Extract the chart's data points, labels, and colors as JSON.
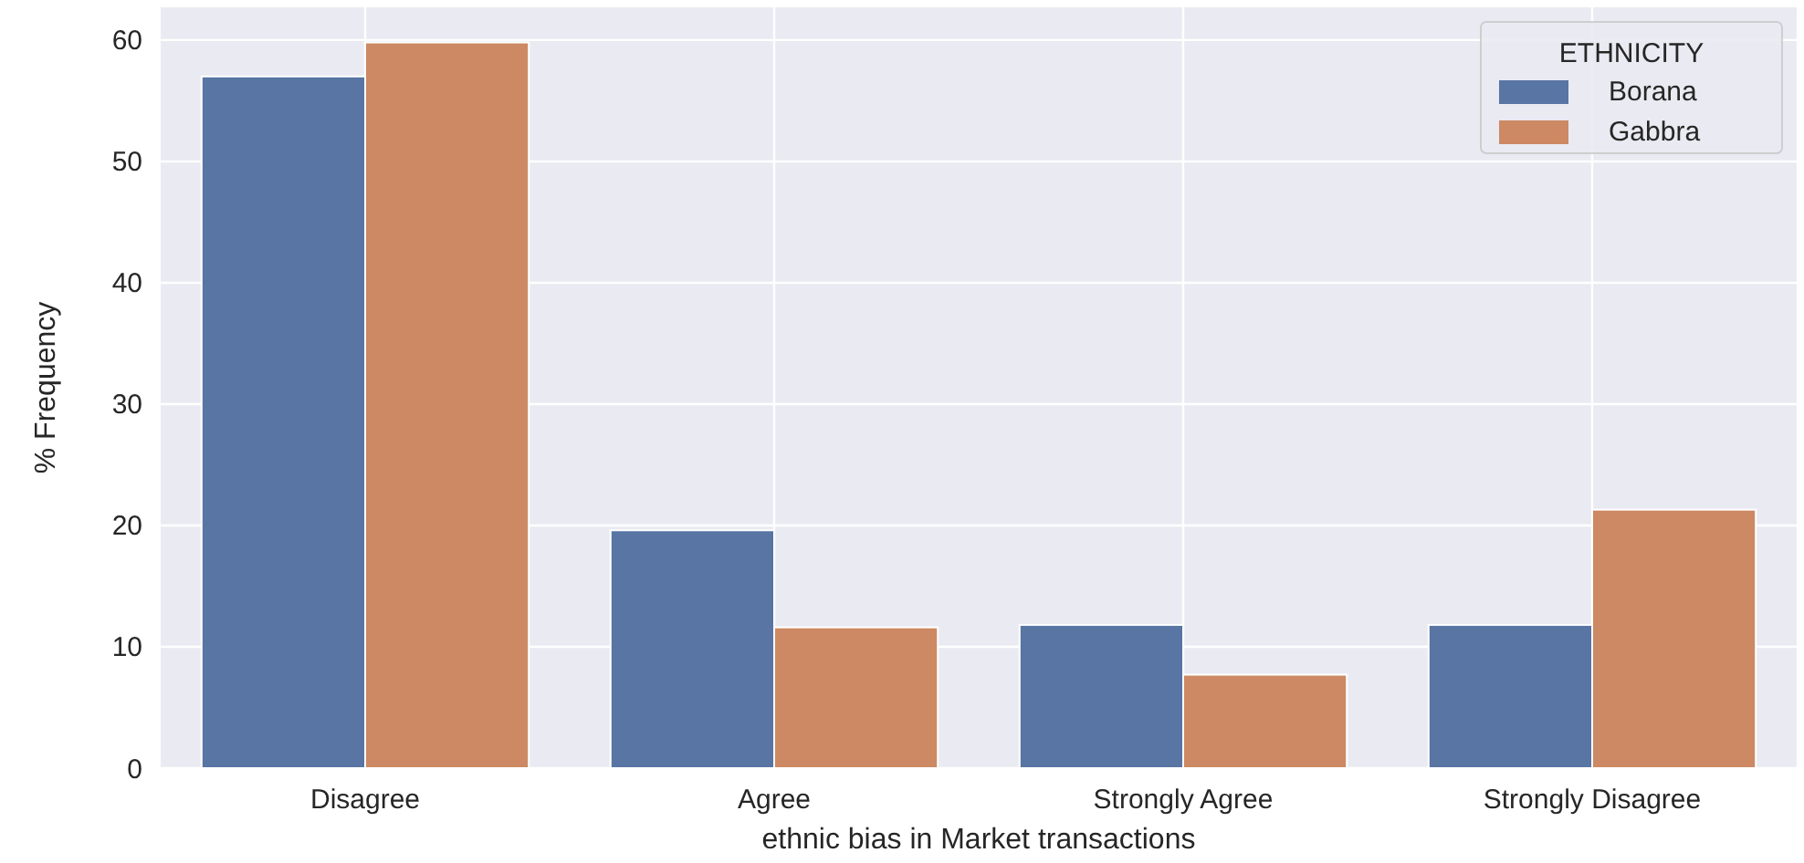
{
  "chart_data": {
    "type": "bar",
    "xlabel": "ethnic bias in Market transactions",
    "ylabel": "% Frequency",
    "legend_title": "ETHNICITY",
    "legend": "top right",
    "grid": true,
    "categories": [
      "Disagree",
      "Agree",
      "Strongly Agree",
      "Strongly Disagree"
    ],
    "series": [
      {
        "name": "Borana",
        "color": "#5875a4",
        "values": [
          57,
          19.6,
          11.8,
          11.8
        ]
      },
      {
        "name": "Gabbra",
        "color": "#cc8963",
        "values": [
          59.8,
          11.6,
          7.7,
          21.3
        ]
      }
    ],
    "ylim": [
      0,
      62.7
    ],
    "yticks": [
      0,
      10,
      20,
      30,
      40,
      50,
      60
    ]
  }
}
